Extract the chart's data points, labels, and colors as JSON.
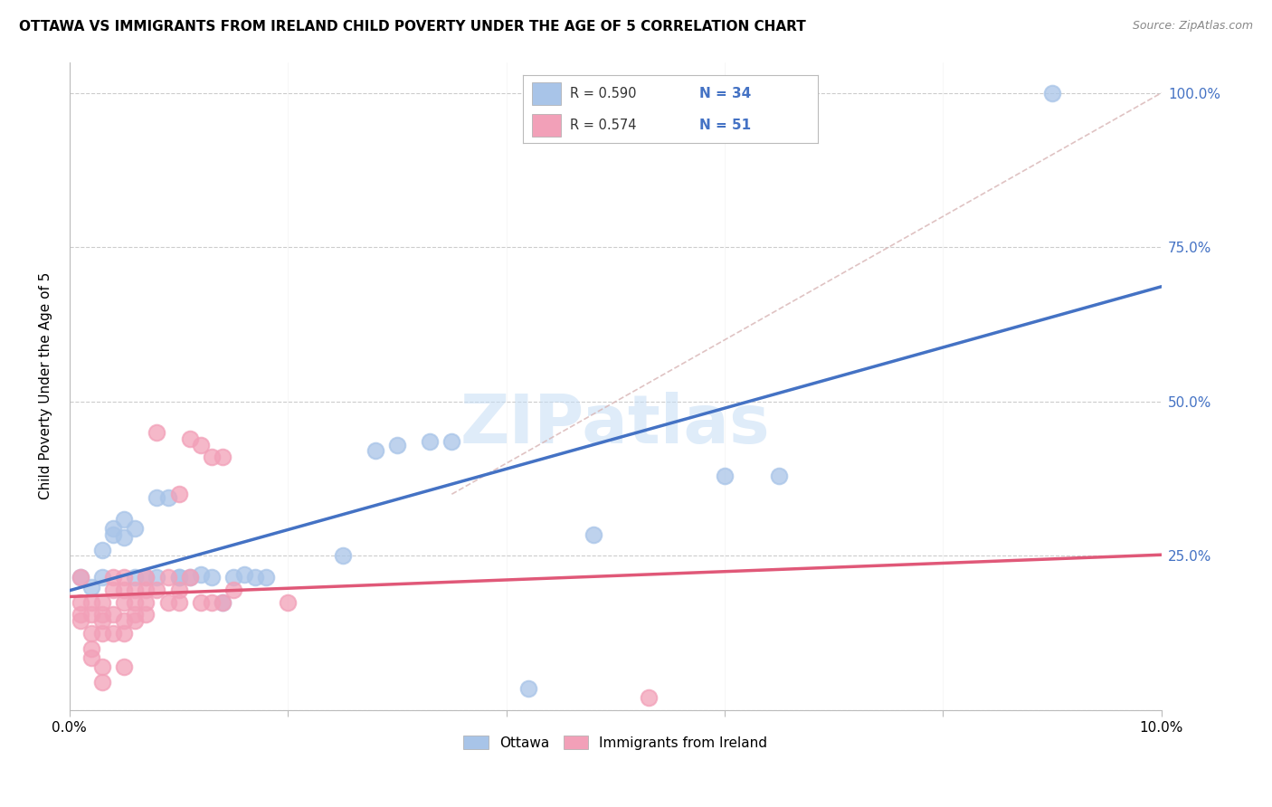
{
  "title": "OTTAWA VS IMMIGRANTS FROM IRELAND CHILD POVERTY UNDER THE AGE OF 5 CORRELATION CHART",
  "source": "Source: ZipAtlas.com",
  "ylabel": "Child Poverty Under the Age of 5",
  "xlabel": "",
  "xlim": [
    0.0,
    0.1
  ],
  "ylim": [
    0.0,
    1.05
  ],
  "ytick_vals": [
    0.0,
    0.25,
    0.5,
    0.75,
    1.0
  ],
  "ytick_labels": [
    "",
    "25.0%",
    "50.0%",
    "75.0%",
    "100.0%"
  ],
  "xtick_vals": [
    0.0,
    0.02,
    0.04,
    0.06,
    0.08,
    0.1
  ],
  "xtick_labels": [
    "0.0%",
    "",
    "",
    "",
    "",
    "10.0%"
  ],
  "ottawa_color": "#a8c4e8",
  "ireland_color": "#f2a0b8",
  "ottawa_line_color": "#4472c4",
  "ireland_line_color": "#e05878",
  "diagonal_line_color": "#d8b4b4",
  "R_ottawa": 0.59,
  "N_ottawa": 34,
  "R_ireland": 0.574,
  "N_ireland": 51,
  "legend_color": "#4472c4",
  "watermark": "ZIPatlas",
  "title_fontsize": 11,
  "ottawa_scatter": [
    [
      0.001,
      0.215
    ],
    [
      0.002,
      0.2
    ],
    [
      0.003,
      0.215
    ],
    [
      0.003,
      0.26
    ],
    [
      0.004,
      0.295
    ],
    [
      0.004,
      0.285
    ],
    [
      0.005,
      0.31
    ],
    [
      0.005,
      0.28
    ],
    [
      0.006,
      0.295
    ],
    [
      0.006,
      0.215
    ],
    [
      0.007,
      0.215
    ],
    [
      0.008,
      0.215
    ],
    [
      0.008,
      0.345
    ],
    [
      0.009,
      0.345
    ],
    [
      0.01,
      0.215
    ],
    [
      0.01,
      0.215
    ],
    [
      0.011,
      0.215
    ],
    [
      0.012,
      0.22
    ],
    [
      0.013,
      0.215
    ],
    [
      0.014,
      0.175
    ],
    [
      0.015,
      0.215
    ],
    [
      0.016,
      0.22
    ],
    [
      0.017,
      0.215
    ],
    [
      0.018,
      0.215
    ],
    [
      0.025,
      0.25
    ],
    [
      0.028,
      0.42
    ],
    [
      0.03,
      0.43
    ],
    [
      0.033,
      0.435
    ],
    [
      0.035,
      0.435
    ],
    [
      0.042,
      0.035
    ],
    [
      0.048,
      0.285
    ],
    [
      0.06,
      0.38
    ],
    [
      0.065,
      0.38
    ],
    [
      0.09,
      1.0
    ]
  ],
  "ireland_scatter": [
    [
      0.001,
      0.215
    ],
    [
      0.001,
      0.175
    ],
    [
      0.001,
      0.155
    ],
    [
      0.001,
      0.145
    ],
    [
      0.002,
      0.175
    ],
    [
      0.002,
      0.155
    ],
    [
      0.002,
      0.125
    ],
    [
      0.002,
      0.1
    ],
    [
      0.002,
      0.085
    ],
    [
      0.003,
      0.175
    ],
    [
      0.003,
      0.155
    ],
    [
      0.003,
      0.145
    ],
    [
      0.003,
      0.125
    ],
    [
      0.003,
      0.07
    ],
    [
      0.003,
      0.045
    ],
    [
      0.004,
      0.215
    ],
    [
      0.004,
      0.195
    ],
    [
      0.004,
      0.155
    ],
    [
      0.004,
      0.125
    ],
    [
      0.005,
      0.215
    ],
    [
      0.005,
      0.195
    ],
    [
      0.005,
      0.175
    ],
    [
      0.005,
      0.145
    ],
    [
      0.005,
      0.125
    ],
    [
      0.005,
      0.07
    ],
    [
      0.006,
      0.195
    ],
    [
      0.006,
      0.175
    ],
    [
      0.006,
      0.155
    ],
    [
      0.006,
      0.145
    ],
    [
      0.007,
      0.215
    ],
    [
      0.007,
      0.195
    ],
    [
      0.007,
      0.175
    ],
    [
      0.007,
      0.155
    ],
    [
      0.008,
      0.195
    ],
    [
      0.008,
      0.45
    ],
    [
      0.009,
      0.215
    ],
    [
      0.009,
      0.175
    ],
    [
      0.01,
      0.195
    ],
    [
      0.01,
      0.175
    ],
    [
      0.01,
      0.35
    ],
    [
      0.011,
      0.215
    ],
    [
      0.011,
      0.44
    ],
    [
      0.012,
      0.43
    ],
    [
      0.012,
      0.175
    ],
    [
      0.013,
      0.41
    ],
    [
      0.013,
      0.175
    ],
    [
      0.014,
      0.41
    ],
    [
      0.014,
      0.175
    ],
    [
      0.015,
      0.195
    ],
    [
      0.02,
      0.175
    ],
    [
      0.053,
      0.02
    ]
  ]
}
